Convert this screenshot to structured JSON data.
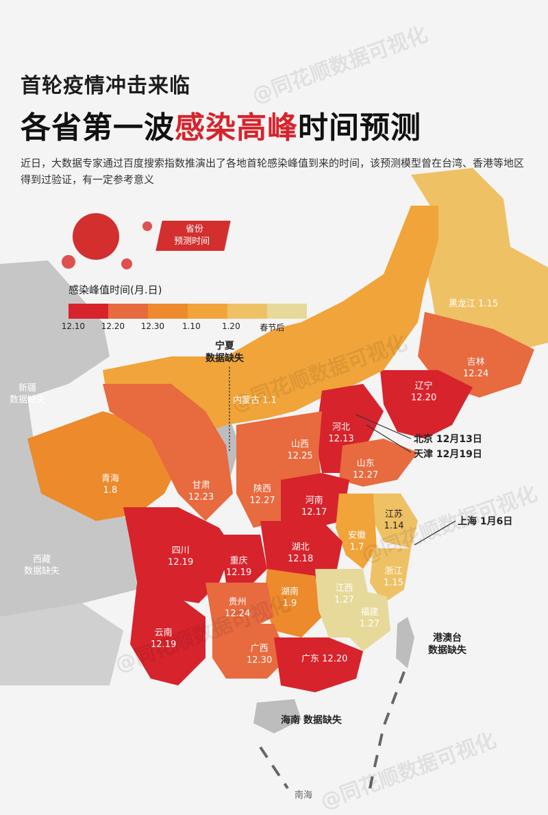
{
  "title_line1": "首轮疫情冲击来临",
  "title_line2_prefix": "各省第一波",
  "title_line2_highlight": "感染高峰",
  "title_line2_suffix": "时间预测",
  "description": "近日，大数据专家通过百度搜索指数推演出了各地首轮感染峰值到来的时间，该预测模型曾在台湾、香港等地区得到过验证，有一定参考意义",
  "watermark": "@同花顺数据可视化",
  "badge": {
    "line1": "省份",
    "line2": "预测时间"
  },
  "legend": {
    "title": "感染峰值时间(月.日)",
    "items": [
      {
        "label": "12.10",
        "color": "#d7232c"
      },
      {
        "label": "12.20",
        "color": "#e86a3f"
      },
      {
        "label": "12.30",
        "color": "#ec8a2c"
      },
      {
        "label": "1.10",
        "color": "#f0a43a"
      },
      {
        "label": "1.20",
        "color": "#efc165"
      },
      {
        "label": "春节后",
        "color": "#e6d99a"
      }
    ]
  },
  "colors": {
    "red": "#d7232c",
    "orange_red": "#e86a3f",
    "orange": "#ec8a2c",
    "light_orange": "#f0a43a",
    "yellow": "#efc165",
    "pale": "#e6d99a",
    "missing": "#bdbdbd"
  },
  "provinces": [
    {
      "name": "黑龙江",
      "date": "1.15",
      "inline": true
    },
    {
      "name": "吉林",
      "date": "12.24"
    },
    {
      "name": "辽宁",
      "date": "12.20"
    },
    {
      "name": "内蒙古",
      "date": "1.1",
      "inline": true
    },
    {
      "name": "河北",
      "date": "12.13",
      "vertical": true
    },
    {
      "name": "山西",
      "date": "12.25",
      "vertical": true
    },
    {
      "name": "山东",
      "date": "12.27"
    },
    {
      "name": "青海",
      "date": "1.8"
    },
    {
      "name": "甘肃",
      "date": "12.23"
    },
    {
      "name": "陕西",
      "date": "12.27",
      "vertical": true
    },
    {
      "name": "河南",
      "date": "12.17"
    },
    {
      "name": "江苏",
      "date": "1.14",
      "vertical": true
    },
    {
      "name": "安徽",
      "date": "1.7"
    },
    {
      "name": "四川",
      "date": "12.19"
    },
    {
      "name": "重庆",
      "date": "12.19"
    },
    {
      "name": "湖北",
      "date": "12.18"
    },
    {
      "name": "浙江",
      "date": "1.15"
    },
    {
      "name": "湖南",
      "date": "1.9"
    },
    {
      "name": "江西",
      "date": "1.27"
    },
    {
      "name": "贵州",
      "date": "12.24"
    },
    {
      "name": "福建",
      "date": "1.27"
    },
    {
      "name": "云南",
      "date": "12.19"
    },
    {
      "name": "广西",
      "date": "12.30"
    },
    {
      "name": "广东",
      "date": "12.20",
      "inline": true
    }
  ],
  "callouts": [
    {
      "name": "北京",
      "date": "12月13日"
    },
    {
      "name": "天津",
      "date": "12月19日"
    },
    {
      "name": "上海",
      "date": "1月6日"
    }
  ],
  "missing": {
    "ningxia": {
      "name": "宁夏",
      "note": "数据缺失"
    },
    "xinjiang": {
      "name": "新疆",
      "note": "数据缺失"
    },
    "tibet": {
      "name": "西藏",
      "note": "数据缺失"
    },
    "hk_macau_tw": {
      "name": "港澳台",
      "note": "数据缺失"
    },
    "hainan": {
      "name": "海南",
      "note": "数据缺失"
    },
    "south_sea": "南海"
  }
}
